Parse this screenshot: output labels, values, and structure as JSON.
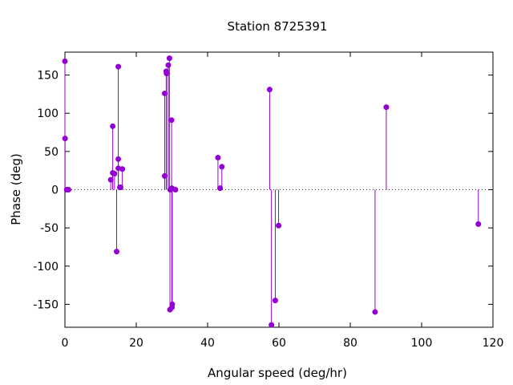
{
  "chart_data": {
    "type": "scatter",
    "title": "Station 8725391",
    "xlabel": "Angular speed (deg/hr)",
    "ylabel": "Phase (deg)",
    "xlim": [
      0,
      120
    ],
    "ylim": [
      -180,
      180
    ],
    "xticks": [
      0,
      20,
      40,
      60,
      80,
      100,
      120
    ],
    "yticks": [
      -150,
      -100,
      -50,
      0,
      50,
      100,
      150
    ],
    "xtick_labels": [
      "0",
      "20",
      "40",
      "60",
      "80",
      "100",
      "120"
    ],
    "ytick_labels": [
      "-150",
      "-100",
      "-50",
      "0",
      "50",
      "100",
      "150"
    ],
    "style": "impulses with points",
    "zero_line": "dotted",
    "grid": false,
    "color": "#9400d3",
    "series": [
      {
        "points": [
          {
            "x": 0.0,
            "y": 168
          },
          {
            "x": 0.04,
            "y": 67
          },
          {
            "x": 0.5,
            "y": 0
          },
          {
            "x": 1.0,
            "y": 0
          },
          {
            "x": 12.85,
            "y": 13
          },
          {
            "x": 13.4,
            "y": 83
          },
          {
            "x": 13.4,
            "y": 22
          },
          {
            "x": 13.9,
            "y": 21
          },
          {
            "x": 14.5,
            "y": -81
          },
          {
            "x": 14.96,
            "y": 161
          },
          {
            "x": 14.96,
            "y": 40
          },
          {
            "x": 14.96,
            "y": 28
          },
          {
            "x": 15.4,
            "y": 3
          },
          {
            "x": 15.6,
            "y": 3
          },
          {
            "x": 16.1,
            "y": 27
          },
          {
            "x": 27.97,
            "y": 126
          },
          {
            "x": 27.97,
            "y": 18
          },
          {
            "x": 28.4,
            "y": 155
          },
          {
            "x": 28.5,
            "y": 152
          },
          {
            "x": 28.98,
            "y": 163
          },
          {
            "x": 29.3,
            "y": 172
          },
          {
            "x": 29.45,
            "y": -157
          },
          {
            "x": 29.5,
            "y": 0
          },
          {
            "x": 29.9,
            "y": 91
          },
          {
            "x": 30.0,
            "y": 2
          },
          {
            "x": 30.0,
            "y": -154
          },
          {
            "x": 30.1,
            "y": -150
          },
          {
            "x": 31.0,
            "y": 0
          },
          {
            "x": 42.9,
            "y": 42
          },
          {
            "x": 43.5,
            "y": 2
          },
          {
            "x": 44.0,
            "y": 30
          },
          {
            "x": 57.4,
            "y": 131
          },
          {
            "x": 57.9,
            "y": -177
          },
          {
            "x": 58.98,
            "y": -145
          },
          {
            "x": 59.9,
            "y": -47
          },
          {
            "x": 86.95,
            "y": -160
          },
          {
            "x": 90.1,
            "y": 108
          },
          {
            "x": 115.9,
            "y": -45
          }
        ]
      }
    ]
  }
}
